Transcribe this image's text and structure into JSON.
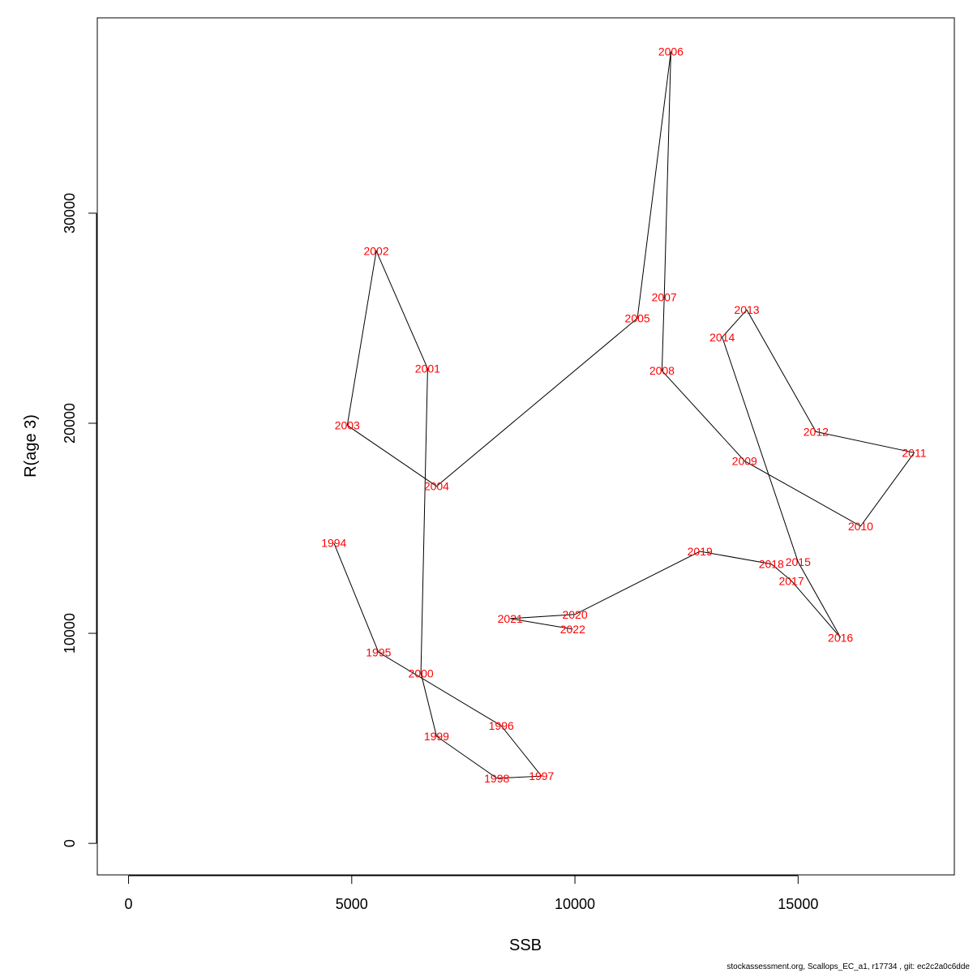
{
  "chart_data": {
    "type": "line",
    "xlabel": "SSB",
    "ylabel": "R(age 3)",
    "xlim": [
      -700,
      18500
    ],
    "ylim": [
      -1500,
      39300
    ],
    "x_ticks": [
      0,
      5000,
      10000,
      15000
    ],
    "y_ticks": [
      0,
      10000,
      20000,
      30000
    ],
    "line_color": "#000000",
    "label_color": "#ff0000",
    "points": [
      {
        "year": "1994",
        "ssb": 4600,
        "r": 14300
      },
      {
        "year": "1995",
        "ssb": 5600,
        "r": 9100
      },
      {
        "year": "1996",
        "ssb": 8350,
        "r": 5600
      },
      {
        "year": "1997",
        "ssb": 9250,
        "r": 3200
      },
      {
        "year": "1998",
        "ssb": 8250,
        "r": 3100
      },
      {
        "year": "1999",
        "ssb": 6900,
        "r": 5100
      },
      {
        "year": "2000",
        "ssb": 6550,
        "r": 8100
      },
      {
        "year": "2001",
        "ssb": 6700,
        "r": 22600
      },
      {
        "year": "2002",
        "ssb": 5550,
        "r": 28200
      },
      {
        "year": "2003",
        "ssb": 4900,
        "r": 19900
      },
      {
        "year": "2004",
        "ssb": 6900,
        "r": 17000
      },
      {
        "year": "2005",
        "ssb": 11400,
        "r": 25000
      },
      {
        "year": "2006",
        "ssb": 12150,
        "r": 37700
      },
      {
        "year": "2007",
        "ssb": 12000,
        "r": 26000
      },
      {
        "year": "2008",
        "ssb": 11950,
        "r": 22500
      },
      {
        "year": "2009",
        "ssb": 13800,
        "r": 18200
      },
      {
        "year": "2010",
        "ssb": 16400,
        "r": 15100
      },
      {
        "year": "2011",
        "ssb": 17600,
        "r": 18600
      },
      {
        "year": "2012",
        "ssb": 15400,
        "r": 19600
      },
      {
        "year": "2013",
        "ssb": 13850,
        "r": 25400
      },
      {
        "year": "2014",
        "ssb": 13300,
        "r": 24100
      },
      {
        "year": "2015",
        "ssb": 15000,
        "r": 13400
      },
      {
        "year": "2016",
        "ssb": 15950,
        "r": 9800
      },
      {
        "year": "2017",
        "ssb": 14850,
        "r": 12500
      },
      {
        "year": "2018",
        "ssb": 14400,
        "r": 13300
      },
      {
        "year": "2019",
        "ssb": 12800,
        "r": 13900
      },
      {
        "year": "2020",
        "ssb": 10000,
        "r": 10900
      },
      {
        "year": "2021",
        "ssb": 8550,
        "r": 10700
      },
      {
        "year": "2022",
        "ssb": 9950,
        "r": 10200
      }
    ]
  },
  "footer": "stockassessment.org, Scallops_EC_a1, r17734 , git: ec2c2a0c6dde"
}
